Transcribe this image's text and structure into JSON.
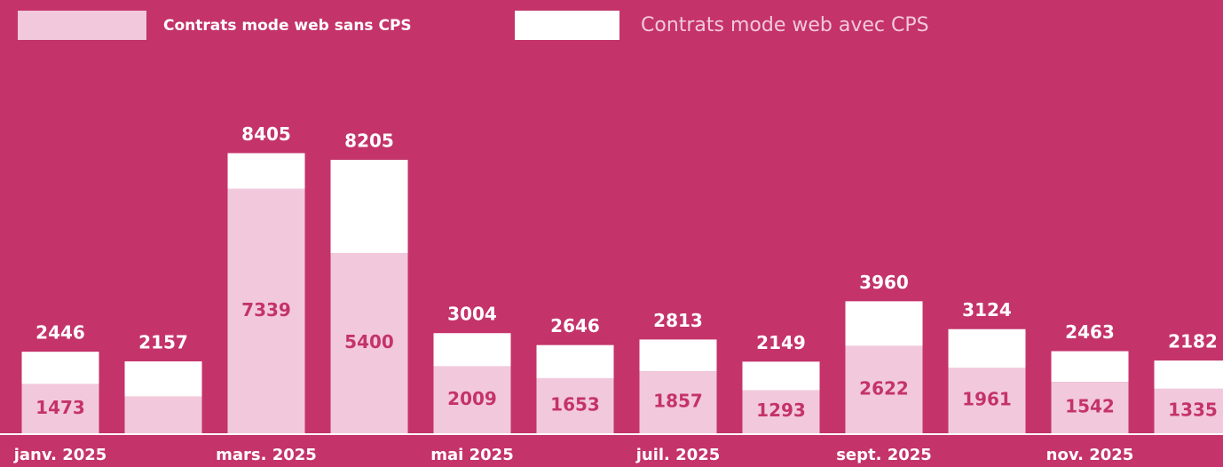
{
  "chart_data": {
    "type": "stacked_bar",
    "categories": [
      "janv. 2025",
      null,
      "mars. 2025",
      null,
      "mai 2025",
      null,
      "juil. 2025",
      null,
      "sept. 2025",
      null,
      "nov. 2025",
      null
    ],
    "series": [
      {
        "name": "Contrats mode web sans CPS",
        "color": "#f2c9dc",
        "values": [
          1473,
          1100,
          7339,
          5400,
          2009,
          1653,
          1857,
          1293,
          2622,
          1961,
          1542,
          1335
        ],
        "value_labels": [
          "1473",
          null,
          "7339",
          "5400",
          "2009",
          "1653",
          "1857",
          "1293",
          "2622",
          "1961",
          "1542",
          "1335"
        ]
      },
      {
        "name": "Contrats mode web avec CPS",
        "color": "#ffffff",
        "values": [
          973,
          1057,
          1066,
          2805,
          995,
          993,
          956,
          856,
          1338,
          1163,
          921,
          847
        ]
      }
    ],
    "totals": [
      2446,
      2157,
      8405,
      8205,
      3004,
      2646,
      2813,
      2149,
      3960,
      3124,
      2463,
      2182
    ],
    "ylim": [
      0,
      13000
    ]
  }
}
